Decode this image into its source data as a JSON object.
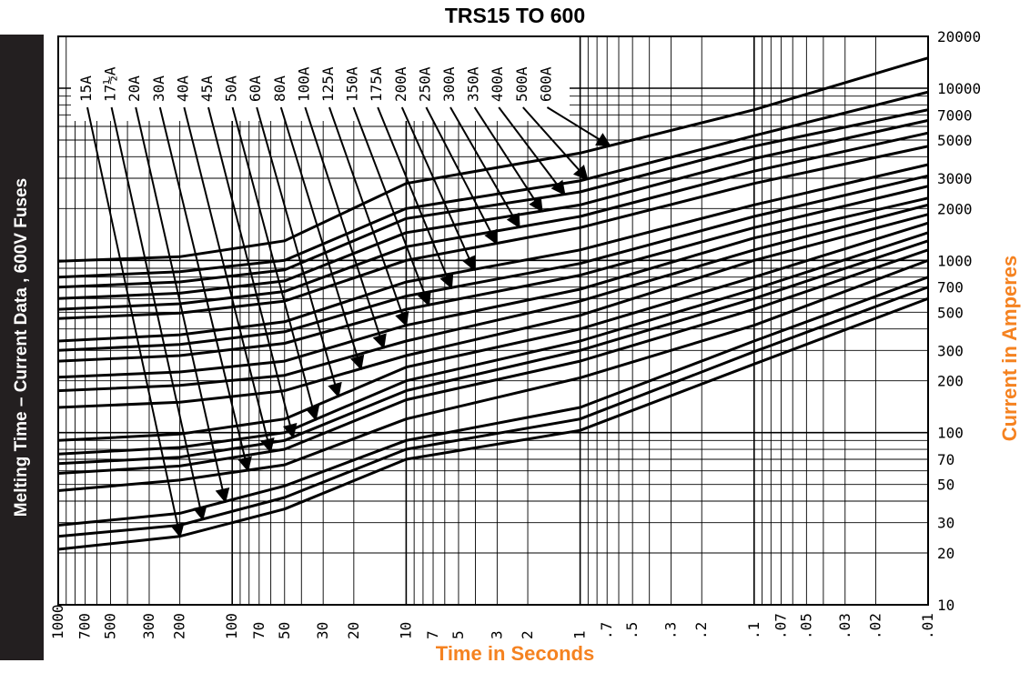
{
  "page": {
    "side_title": "Melting Time – Current Data , 600V Fuses"
  },
  "chart_data": {
    "type": "line",
    "title": "TRS15 TO 600",
    "xlabel": "Time in Seconds",
    "ylabel": "Current in Amperes",
    "x_scale": "log",
    "y_scale": "log",
    "xlim": [
      1000,
      0.01
    ],
    "ylim": [
      10,
      20000
    ],
    "grid": true,
    "x_ticks": [
      1000,
      700,
      500,
      300,
      200,
      100,
      70,
      50,
      30,
      20,
      10,
      7,
      5,
      3,
      2,
      1,
      0.7,
      0.5,
      0.3,
      0.2,
      0.1,
      0.07,
      0.05,
      0.03,
      0.02,
      0.01
    ],
    "x_tick_labels": [
      "1000",
      "700",
      "500",
      "300",
      "200",
      "100",
      "70",
      "50",
      "30",
      "20",
      "10",
      "7",
      "5",
      "3",
      "2",
      "1",
      ".7",
      ".5",
      ".3",
      ".2",
      ".1",
      ".07",
      ".05",
      ".03",
      ".02",
      ".01"
    ],
    "y_ticks": [
      20000,
      10000,
      7000,
      5000,
      3000,
      2000,
      1000,
      700,
      500,
      300,
      200,
      100,
      70,
      50,
      30,
      20,
      10
    ],
    "y_tick_labels": [
      "20000",
      "10000",
      "7000",
      "5000",
      "3000",
      "2000",
      "1000",
      "700",
      "500",
      "300",
      "200",
      "100",
      "70",
      "50",
      "30",
      "20",
      "10"
    ],
    "legend_placement": "top-left",
    "series": [
      {
        "name": "15A",
        "t": [
          1000,
          200,
          50,
          10,
          1,
          0.1,
          0.01
        ],
        "i": [
          21,
          25,
          36,
          70,
          103,
          250,
          600
        ]
      },
      {
        "name": "17½A",
        "t": [
          1000,
          200,
          50,
          10,
          1,
          0.1,
          0.01
        ],
        "i": [
          25,
          29,
          42,
          80,
          120,
          295,
          700
        ]
      },
      {
        "name": "20A",
        "t": [
          1000,
          200,
          50,
          10,
          1,
          0.1,
          0.01
        ],
        "i": [
          29,
          34,
          49,
          90,
          140,
          340,
          800
        ]
      },
      {
        "name": "30A",
        "t": [
          1000,
          200,
          50,
          10,
          1,
          0.1,
          0.01
        ],
        "i": [
          46,
          53,
          65,
          120,
          208,
          420,
          1000
        ]
      },
      {
        "name": "40A",
        "t": [
          1000,
          200,
          50,
          10,
          1,
          0.1,
          0.01
        ],
        "i": [
          58,
          64,
          80,
          155,
          260,
          520,
          1150
        ]
      },
      {
        "name": "45A",
        "t": [
          1000,
          200,
          50,
          10,
          1,
          0.1,
          0.01
        ],
        "i": [
          66,
          72,
          90,
          175,
          300,
          600,
          1300
        ]
      },
      {
        "name": "50A",
        "t": [
          1000,
          200,
          50,
          10,
          1,
          0.1,
          0.01
        ],
        "i": [
          75,
          82,
          100,
          200,
          340,
          680,
          1450
        ]
      },
      {
        "name": "60A",
        "t": [
          1000,
          200,
          50,
          10,
          1,
          0.1,
          0.01
        ],
        "i": [
          90,
          98,
          120,
          240,
          400,
          800,
          1650
        ]
      },
      {
        "name": "80A",
        "t": [
          1000,
          200,
          50,
          10,
          1,
          0.1,
          0.01
        ],
        "i": [
          140,
          150,
          175,
          280,
          480,
          1000,
          1850
        ]
      },
      {
        "name": "100A",
        "t": [
          1000,
          200,
          50,
          10,
          1,
          0.1,
          0.01
        ],
        "i": [
          175,
          188,
          215,
          340,
          580,
          1150,
          2100
        ]
      },
      {
        "name": "125A",
        "t": [
          1000,
          200,
          50,
          10,
          1,
          0.1,
          0.01
        ],
        "i": [
          210,
          225,
          260,
          420,
          680,
          1350,
          2300
        ]
      },
      {
        "name": "150A",
        "t": [
          1000,
          200,
          50,
          10,
          1,
          0.1,
          0.01
        ],
        "i": [
          260,
          280,
          330,
          520,
          820,
          1550,
          2700
        ]
      },
      {
        "name": "175A",
        "t": [
          1000,
          200,
          50,
          10,
          1,
          0.1,
          0.01
        ],
        "i": [
          300,
          325,
          385,
          620,
          960,
          1800,
          3100
        ]
      },
      {
        "name": "200A",
        "t": [
          1000,
          200,
          50,
          10,
          1,
          0.1,
          0.01
        ],
        "i": [
          340,
          370,
          440,
          750,
          1150,
          2100,
          3600
        ]
      },
      {
        "name": "250A",
        "t": [
          1000,
          200,
          50,
          10,
          1,
          0.1,
          0.01
        ],
        "i": [
          460,
          495,
          580,
          1000,
          1550,
          2800,
          4600
        ]
      },
      {
        "name": "300A",
        "t": [
          1000,
          200,
          50,
          10,
          1,
          0.1,
          0.01
        ],
        "i": [
          520,
          560,
          660,
          1200,
          1800,
          3300,
          5500
        ]
      },
      {
        "name": "350A",
        "t": [
          1000,
          200,
          50,
          10,
          1,
          0.1,
          0.01
        ],
        "i": [
          600,
          645,
          760,
          1450,
          2100,
          3900,
          6500
        ]
      },
      {
        "name": "400A",
        "t": [
          1000,
          200,
          50,
          10,
          1,
          0.1,
          0.01
        ],
        "i": [
          700,
          750,
          880,
          1750,
          2500,
          4600,
          7500
        ]
      },
      {
        "name": "500A",
        "t": [
          1000,
          200,
          50,
          10,
          1,
          0.1,
          0.01
        ],
        "i": [
          800,
          860,
          1000,
          2000,
          2900,
          5300,
          9500
        ]
      },
      {
        "name": "600A",
        "t": [
          1000,
          200,
          50,
          10,
          1,
          0.1,
          0.01
        ],
        "i": [
          990,
          1050,
          1300,
          2800,
          4200,
          7500,
          15000
        ]
      }
    ]
  }
}
